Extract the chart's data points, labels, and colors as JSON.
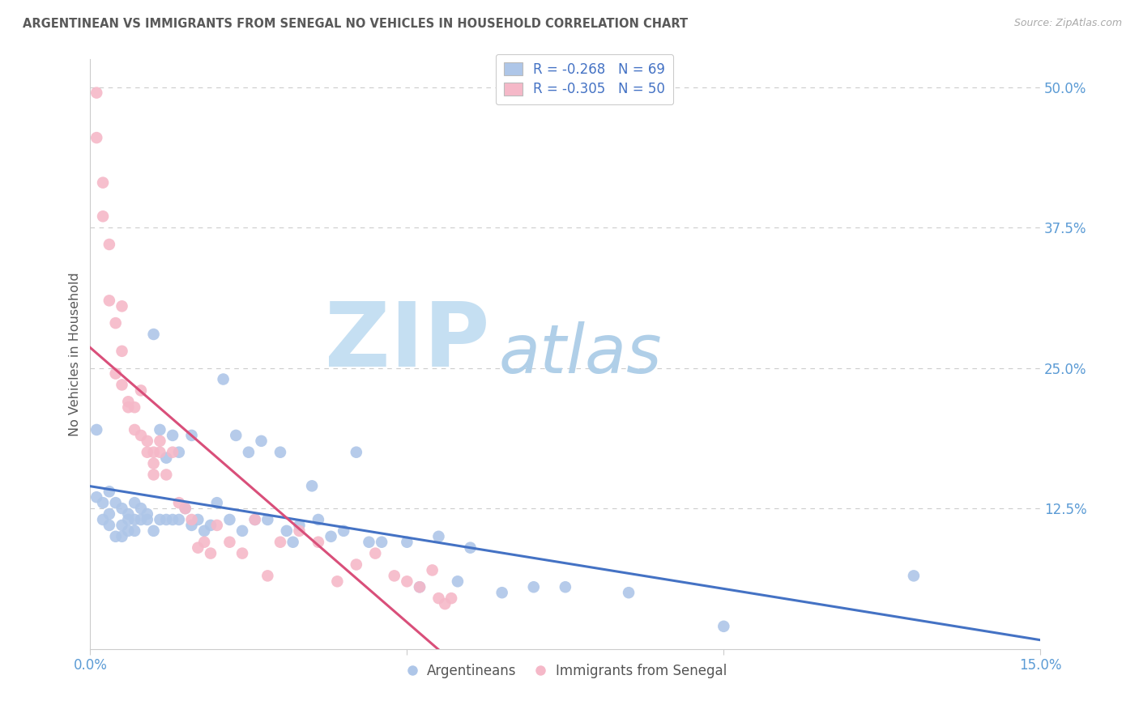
{
  "title": "ARGENTINEAN VS IMMIGRANTS FROM SENEGAL NO VEHICLES IN HOUSEHOLD CORRELATION CHART",
  "source": "Source: ZipAtlas.com",
  "ylabel": "No Vehicles in Household",
  "x_min": 0.0,
  "x_max": 0.15,
  "y_min": 0.0,
  "y_max": 0.525,
  "y_ticks_right": [
    0.125,
    0.25,
    0.375,
    0.5
  ],
  "y_tick_labels_right": [
    "12.5%",
    "25.0%",
    "37.5%",
    "50.0%"
  ],
  "legend_r1": "-0.268",
  "legend_n1": "69",
  "legend_r2": "-0.305",
  "legend_n2": "50",
  "color_argentinean": "#aec6e8",
  "color_senegal": "#f5b8c8",
  "trendline_blue": "#4472c4",
  "trendline_pink": "#d94f7a",
  "watermark_zip": "ZIP",
  "watermark_atlas": "atlas",
  "watermark_color_zip": "#c8dff0",
  "watermark_color_atlas": "#b8d4ea",
  "legend_label_1": "Argentineans",
  "legend_label_2": "Immigrants from Senegal",
  "background_color": "#ffffff",
  "grid_color": "#cccccc",
  "axis_color": "#cccccc",
  "tick_label_color": "#5b9bd5",
  "title_color": "#595959",
  "ylabel_color": "#595959",
  "source_color": "#aaaaaa",
  "legend_text_color": "#4472c4",
  "argentinean_x": [
    0.001,
    0.001,
    0.002,
    0.002,
    0.003,
    0.003,
    0.003,
    0.004,
    0.004,
    0.005,
    0.005,
    0.005,
    0.006,
    0.006,
    0.006,
    0.007,
    0.007,
    0.007,
    0.008,
    0.008,
    0.009,
    0.009,
    0.01,
    0.01,
    0.011,
    0.011,
    0.012,
    0.012,
    0.013,
    0.013,
    0.014,
    0.014,
    0.015,
    0.016,
    0.016,
    0.017,
    0.018,
    0.019,
    0.02,
    0.021,
    0.022,
    0.023,
    0.024,
    0.025,
    0.026,
    0.027,
    0.028,
    0.03,
    0.031,
    0.032,
    0.033,
    0.035,
    0.036,
    0.038,
    0.04,
    0.042,
    0.044,
    0.046,
    0.05,
    0.052,
    0.055,
    0.058,
    0.06,
    0.065,
    0.07,
    0.075,
    0.085,
    0.1,
    0.13
  ],
  "argentinean_y": [
    0.195,
    0.135,
    0.13,
    0.115,
    0.14,
    0.12,
    0.11,
    0.13,
    0.1,
    0.125,
    0.11,
    0.1,
    0.12,
    0.115,
    0.105,
    0.13,
    0.115,
    0.105,
    0.125,
    0.115,
    0.12,
    0.115,
    0.28,
    0.105,
    0.195,
    0.115,
    0.17,
    0.115,
    0.19,
    0.115,
    0.175,
    0.115,
    0.125,
    0.19,
    0.11,
    0.115,
    0.105,
    0.11,
    0.13,
    0.24,
    0.115,
    0.19,
    0.105,
    0.175,
    0.115,
    0.185,
    0.115,
    0.175,
    0.105,
    0.095,
    0.11,
    0.145,
    0.115,
    0.1,
    0.105,
    0.175,
    0.095,
    0.095,
    0.095,
    0.055,
    0.1,
    0.06,
    0.09,
    0.05,
    0.055,
    0.055,
    0.05,
    0.02,
    0.065
  ],
  "senegal_x": [
    0.001,
    0.001,
    0.002,
    0.002,
    0.003,
    0.003,
    0.004,
    0.004,
    0.005,
    0.005,
    0.005,
    0.006,
    0.006,
    0.007,
    0.007,
    0.008,
    0.008,
    0.009,
    0.009,
    0.01,
    0.01,
    0.01,
    0.011,
    0.011,
    0.012,
    0.013,
    0.014,
    0.015,
    0.016,
    0.017,
    0.018,
    0.019,
    0.02,
    0.022,
    0.024,
    0.026,
    0.028,
    0.03,
    0.033,
    0.036,
    0.039,
    0.042,
    0.045,
    0.048,
    0.05,
    0.052,
    0.054,
    0.055,
    0.056,
    0.057
  ],
  "senegal_y": [
    0.495,
    0.455,
    0.415,
    0.385,
    0.36,
    0.31,
    0.29,
    0.245,
    0.305,
    0.265,
    0.235,
    0.22,
    0.215,
    0.215,
    0.195,
    0.23,
    0.19,
    0.185,
    0.175,
    0.175,
    0.165,
    0.155,
    0.185,
    0.175,
    0.155,
    0.175,
    0.13,
    0.125,
    0.115,
    0.09,
    0.095,
    0.085,
    0.11,
    0.095,
    0.085,
    0.115,
    0.065,
    0.095,
    0.105,
    0.095,
    0.06,
    0.075,
    0.085,
    0.065,
    0.06,
    0.055,
    0.07,
    0.045,
    0.04,
    0.045
  ]
}
